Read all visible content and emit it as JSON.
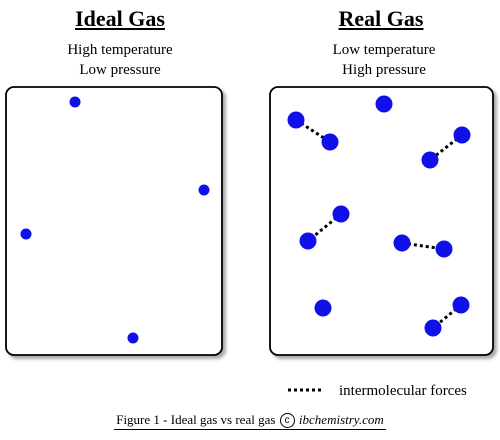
{
  "ideal": {
    "title": "Ideal Gas",
    "conditions": [
      "High temperature",
      "Low pressure"
    ]
  },
  "real": {
    "title": "Real Gas",
    "conditions": [
      "Low temperature",
      "High pressure"
    ]
  },
  "legend": {
    "label": "intermolecular forces"
  },
  "caption": {
    "text": "Figure 1 - Ideal gas vs real gas",
    "copyright_symbol": "c",
    "site": "ibchemistry.com"
  },
  "colors": {
    "particle": "#1010e8",
    "box_border": "#000000",
    "force_line": "#000000"
  }
}
